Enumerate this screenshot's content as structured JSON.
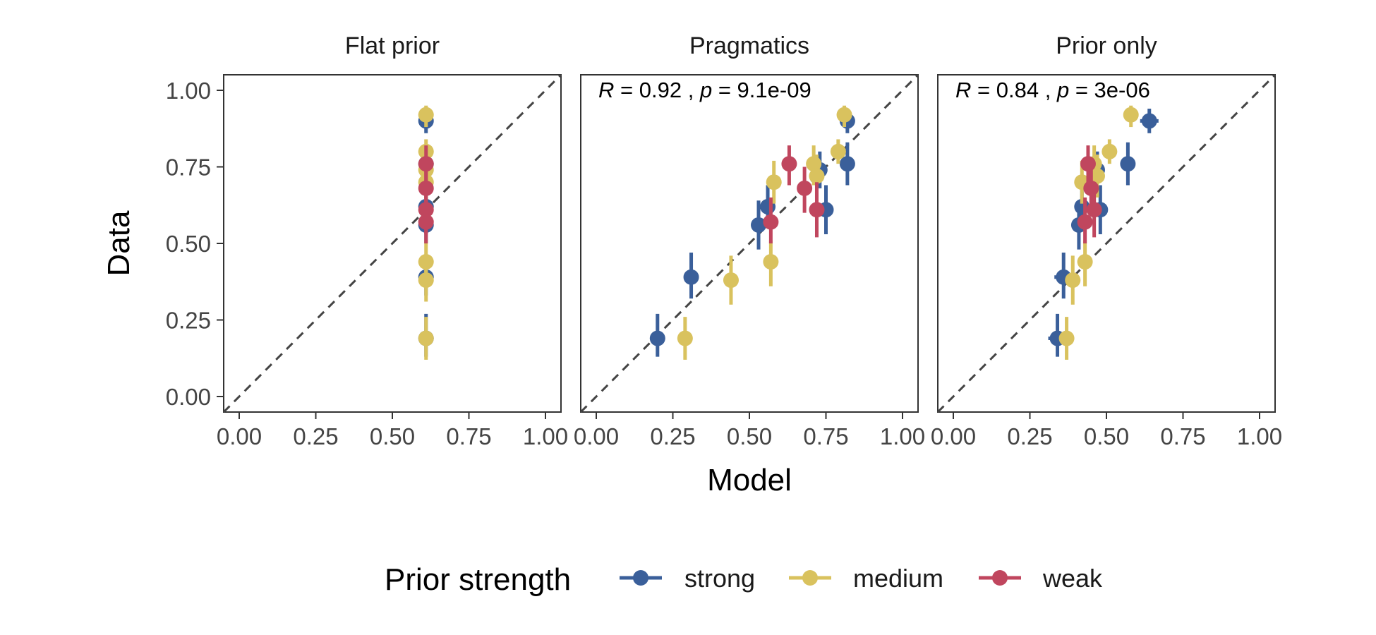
{
  "chart_data": {
    "type": "scatter",
    "facets": [
      "Flat prior",
      "Pragmatics",
      "Prior only"
    ],
    "xlabel": "Model",
    "ylabel": "Data",
    "xlim": [
      0,
      1
    ],
    "ylim": [
      0,
      1
    ],
    "x_ticks": [
      "0.00",
      "0.25",
      "0.50",
      "0.75",
      "1.00"
    ],
    "y_ticks": [
      "0.00",
      "0.25",
      "0.50",
      "0.75",
      "1.00"
    ],
    "reference_line": "y = x (dashed)",
    "grid": false,
    "legend": {
      "title": "Prior strength",
      "placement": "bottom",
      "entries": [
        {
          "name": "strong",
          "color": "#3A5F9A"
        },
        {
          "name": "medium",
          "color": "#D9C25E"
        },
        {
          "name": "weak",
          "color": "#C0465E"
        }
      ]
    },
    "annotations": [
      {
        "facet": "Pragmatics",
        "r_label": "R",
        "r_value": "0.92",
        "sep": ",",
        "p_label": "p",
        "p_value": "9.1e-09"
      },
      {
        "facet": "Prior only",
        "r_label": "R",
        "r_value": "0.84",
        "sep": ",",
        "p_label": "p",
        "p_value": "3e-06"
      }
    ],
    "series": [
      {
        "facet": "Flat prior",
        "name": "strong",
        "points": [
          {
            "x": 0.61,
            "y": 0.9,
            "ylo": 0.86,
            "yhi": 0.94
          },
          {
            "x": 0.61,
            "y": 0.76,
            "ylo": 0.72,
            "yhi": 0.8
          },
          {
            "x": 0.61,
            "y": 0.62,
            "ylo": 0.56,
            "yhi": 0.68
          },
          {
            "x": 0.61,
            "y": 0.56,
            "ylo": 0.5,
            "yhi": 0.62
          },
          {
            "x": 0.61,
            "y": 0.39,
            "ylo": 0.33,
            "yhi": 0.46
          },
          {
            "x": 0.61,
            "y": 0.19,
            "ylo": 0.13,
            "yhi": 0.27
          }
        ]
      },
      {
        "facet": "Flat prior",
        "name": "medium",
        "points": [
          {
            "x": 0.61,
            "y": 0.92,
            "ylo": 0.88,
            "yhi": 0.95
          },
          {
            "x": 0.61,
            "y": 0.8,
            "ylo": 0.76,
            "yhi": 0.84
          },
          {
            "x": 0.61,
            "y": 0.74,
            "ylo": 0.69,
            "yhi": 0.79
          },
          {
            "x": 0.61,
            "y": 0.7,
            "ylo": 0.64,
            "yhi": 0.76
          },
          {
            "x": 0.61,
            "y": 0.44,
            "ylo": 0.37,
            "yhi": 0.51
          },
          {
            "x": 0.61,
            "y": 0.38,
            "ylo": 0.31,
            "yhi": 0.45
          },
          {
            "x": 0.61,
            "y": 0.19,
            "ylo": 0.12,
            "yhi": 0.26
          }
        ]
      },
      {
        "facet": "Flat prior",
        "name": "weak",
        "points": [
          {
            "x": 0.61,
            "y": 0.76,
            "ylo": 0.7,
            "yhi": 0.82
          },
          {
            "x": 0.61,
            "y": 0.68,
            "ylo": 0.61,
            "yhi": 0.74
          },
          {
            "x": 0.61,
            "y": 0.61,
            "ylo": 0.53,
            "yhi": 0.68
          },
          {
            "x": 0.61,
            "y": 0.57,
            "ylo": 0.5,
            "yhi": 0.64
          }
        ]
      },
      {
        "facet": "Pragmatics",
        "name": "strong",
        "points": [
          {
            "x": 0.82,
            "y": 0.9,
            "ylo": 0.86,
            "yhi": 0.94
          },
          {
            "x": 0.82,
            "y": 0.76,
            "ylo": 0.69,
            "yhi": 0.83
          },
          {
            "x": 0.73,
            "y": 0.74,
            "ylo": 0.68,
            "yhi": 0.8
          },
          {
            "x": 0.56,
            "y": 0.62,
            "ylo": 0.55,
            "yhi": 0.69
          },
          {
            "x": 0.75,
            "y": 0.61,
            "ylo": 0.53,
            "yhi": 0.69
          },
          {
            "x": 0.53,
            "y": 0.56,
            "ylo": 0.48,
            "yhi": 0.64
          },
          {
            "x": 0.31,
            "y": 0.39,
            "ylo": 0.32,
            "yhi": 0.47
          },
          {
            "x": 0.2,
            "y": 0.19,
            "ylo": 0.13,
            "yhi": 0.27
          }
        ]
      },
      {
        "facet": "Pragmatics",
        "name": "medium",
        "points": [
          {
            "x": 0.81,
            "y": 0.92,
            "ylo": 0.88,
            "yhi": 0.95
          },
          {
            "x": 0.79,
            "y": 0.8,
            "ylo": 0.76,
            "yhi": 0.84
          },
          {
            "x": 0.71,
            "y": 0.76,
            "ylo": 0.69,
            "yhi": 0.82
          },
          {
            "x": 0.72,
            "y": 0.72,
            "ylo": 0.65,
            "yhi": 0.79
          },
          {
            "x": 0.58,
            "y": 0.7,
            "ylo": 0.63,
            "yhi": 0.77
          },
          {
            "x": 0.57,
            "y": 0.44,
            "ylo": 0.36,
            "yhi": 0.51
          },
          {
            "x": 0.44,
            "y": 0.38,
            "ylo": 0.3,
            "yhi": 0.46
          },
          {
            "x": 0.29,
            "y": 0.19,
            "ylo": 0.12,
            "yhi": 0.26
          }
        ]
      },
      {
        "facet": "Pragmatics",
        "name": "weak",
        "points": [
          {
            "x": 0.63,
            "y": 0.76,
            "ylo": 0.69,
            "yhi": 0.82
          },
          {
            "x": 0.68,
            "y": 0.68,
            "ylo": 0.6,
            "yhi": 0.75
          },
          {
            "x": 0.72,
            "y": 0.61,
            "ylo": 0.52,
            "yhi": 0.7
          },
          {
            "x": 0.57,
            "y": 0.57,
            "ylo": 0.5,
            "yhi": 0.65
          }
        ]
      },
      {
        "facet": "Prior only",
        "name": "strong",
        "points": [
          {
            "x": 0.64,
            "y": 0.9,
            "xlo": 0.61,
            "xhi": 0.67,
            "ylo": 0.86,
            "yhi": 0.94
          },
          {
            "x": 0.57,
            "y": 0.76,
            "ylo": 0.69,
            "yhi": 0.83
          },
          {
            "x": 0.47,
            "y": 0.74,
            "ylo": 0.68,
            "yhi": 0.8
          },
          {
            "x": 0.42,
            "y": 0.62,
            "ylo": 0.55,
            "yhi": 0.69
          },
          {
            "x": 0.48,
            "y": 0.61,
            "ylo": 0.53,
            "yhi": 0.69
          },
          {
            "x": 0.41,
            "y": 0.56,
            "ylo": 0.48,
            "yhi": 0.64
          },
          {
            "x": 0.36,
            "y": 0.39,
            "xlo": 0.33,
            "xhi": 0.39,
            "ylo": 0.32,
            "yhi": 0.47
          },
          {
            "x": 0.34,
            "y": 0.19,
            "xlo": 0.31,
            "xhi": 0.37,
            "ylo": 0.13,
            "yhi": 0.27
          }
        ]
      },
      {
        "facet": "Prior only",
        "name": "medium",
        "points": [
          {
            "x": 0.58,
            "y": 0.92,
            "ylo": 0.88,
            "yhi": 0.95
          },
          {
            "x": 0.51,
            "y": 0.8,
            "ylo": 0.76,
            "yhi": 0.84
          },
          {
            "x": 0.46,
            "y": 0.76,
            "ylo": 0.69,
            "yhi": 0.82
          },
          {
            "x": 0.47,
            "y": 0.72,
            "ylo": 0.65,
            "yhi": 0.79
          },
          {
            "x": 0.42,
            "y": 0.7,
            "ylo": 0.63,
            "yhi": 0.77
          },
          {
            "x": 0.43,
            "y": 0.44,
            "ylo": 0.36,
            "yhi": 0.51
          },
          {
            "x": 0.39,
            "y": 0.38,
            "ylo": 0.3,
            "yhi": 0.46
          },
          {
            "x": 0.37,
            "y": 0.19,
            "ylo": 0.12,
            "yhi": 0.26
          }
        ]
      },
      {
        "facet": "Prior only",
        "name": "weak",
        "points": [
          {
            "x": 0.44,
            "y": 0.76,
            "ylo": 0.69,
            "yhi": 0.82
          },
          {
            "x": 0.45,
            "y": 0.68,
            "ylo": 0.6,
            "yhi": 0.75
          },
          {
            "x": 0.46,
            "y": 0.61,
            "ylo": 0.52,
            "yhi": 0.7
          },
          {
            "x": 0.43,
            "y": 0.57,
            "ylo": 0.5,
            "yhi": 0.65
          }
        ]
      }
    ]
  }
}
